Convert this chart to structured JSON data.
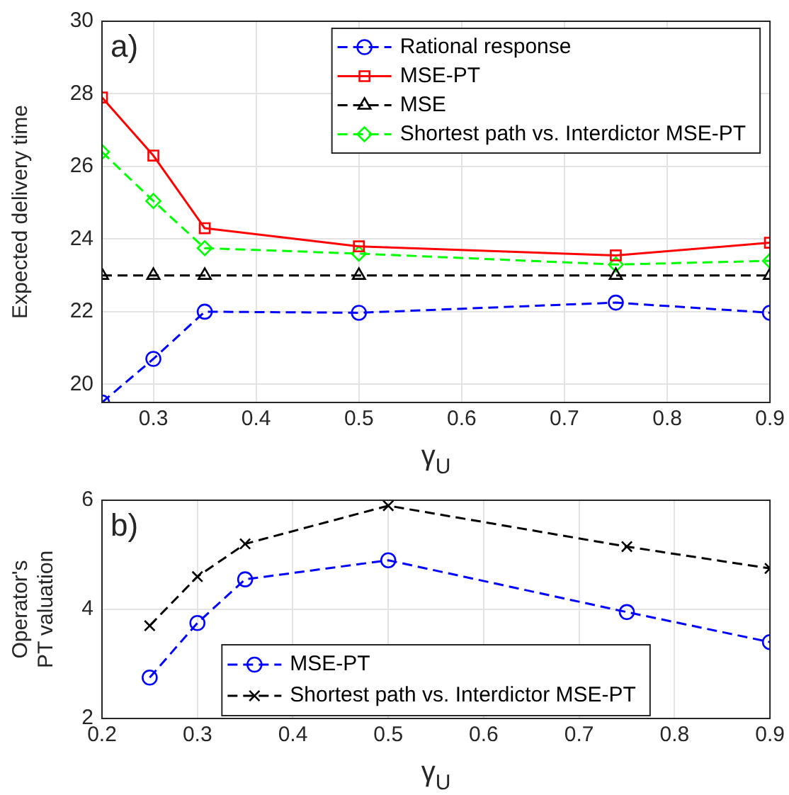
{
  "chart_data": [
    {
      "type": "line",
      "xlabel": "γ$_{U}$",
      "ylabel": "Expected delivery time",
      "annotations": [
        "a)"
      ],
      "x": [
        0.25,
        0.3,
        0.35,
        0.5,
        0.75,
        0.9
      ],
      "xlim": [
        0.25,
        0.9
      ],
      "xticks": [
        0.3,
        0.4,
        0.5,
        0.6,
        0.7,
        0.8,
        0.9
      ],
      "ylim": [
        19.5,
        30
      ],
      "yticks": [
        20,
        22,
        24,
        26,
        28,
        30
      ],
      "grid": true,
      "legend": "top right",
      "series": [
        {
          "name": "Rational response",
          "color": "#0000ff",
          "marker": "circle",
          "line_style": "dashed",
          "values": [
            19.5,
            20.7,
            22.0,
            21.97,
            22.25,
            21.97
          ]
        },
        {
          "name": "MSE-PT",
          "color": "#ff0000",
          "marker": "square",
          "line_style": "solid",
          "values": [
            27.9,
            26.3,
            24.3,
            23.8,
            23.55,
            23.9
          ]
        },
        {
          "name": "MSE",
          "color": "#000000",
          "marker": "triangle",
          "line_style": "dashed",
          "values": [
            23,
            23,
            23,
            23,
            23,
            23
          ]
        },
        {
          "name": "Shortest path vs. Interdictor MSE-PT",
          "color": "#00ff00",
          "marker": "diamond",
          "line_style": "dashed",
          "values": [
            26.4,
            25.05,
            23.75,
            23.6,
            23.3,
            23.4
          ]
        }
      ]
    },
    {
      "type": "line",
      "xlabel": "γ$_{U}$",
      "ylabel": "Operator's\nPT valuation",
      "annotations": [
        "b)"
      ],
      "x": [
        0.25,
        0.3,
        0.35,
        0.5,
        0.75,
        0.9
      ],
      "xlim": [
        0.2,
        0.9
      ],
      "xticks": [
        0.2,
        0.3,
        0.4,
        0.5,
        0.6,
        0.7,
        0.8,
        0.9
      ],
      "ylim": [
        2,
        6
      ],
      "yticks": [
        2,
        4,
        6
      ],
      "grid": true,
      "legend": "bottom",
      "series": [
        {
          "name": "MSE-PT",
          "color": "#0000ff",
          "marker": "circle",
          "line_style": "dashed",
          "values": [
            2.75,
            3.75,
            4.55,
            4.9,
            3.95,
            3.4
          ]
        },
        {
          "name": "Shortest path vs. Interdictor MSE-PT",
          "color": "#000000",
          "marker": "cross",
          "line_style": "dashed",
          "values": [
            3.7,
            4.6,
            5.2,
            5.9,
            5.15,
            4.75
          ]
        }
      ]
    }
  ]
}
